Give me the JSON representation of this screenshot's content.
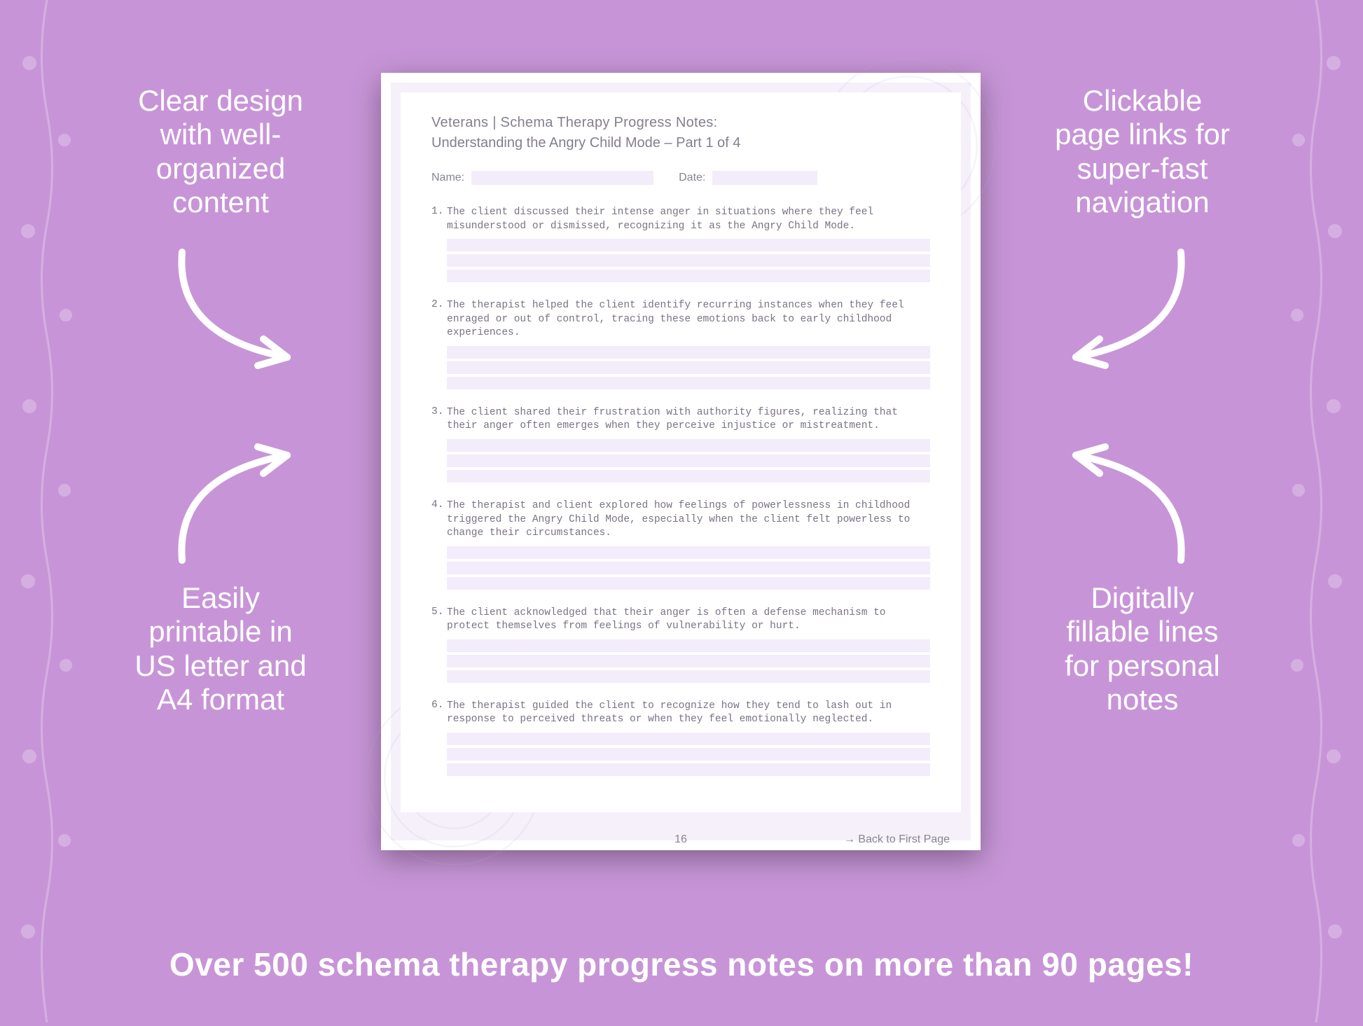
{
  "callouts": {
    "top_left": [
      "Clear design",
      "with well-",
      "organized",
      "content"
    ],
    "top_right": [
      "Clickable",
      "page links for",
      "super-fast",
      "navigation"
    ],
    "bottom_left": [
      "Easily",
      "printable in",
      "US letter and",
      "A4 format"
    ],
    "bottom_right": [
      "Digitally",
      "fillable lines",
      "for personal",
      "notes"
    ]
  },
  "callout_font_size": 42,
  "tagline": "Over 500 schema therapy progress notes on more than 90 pages!",
  "colors": {
    "background": "#c795d7",
    "page_bg": "#ffffff",
    "page_pad": "#f6f0fb",
    "fill_line": "#f3ecfa",
    "doc_text": "#857e8e",
    "body_text": "#7a7284",
    "white": "#ffffff"
  },
  "document": {
    "title": "Veterans | Schema Therapy Progress Notes:",
    "subtitle": "Understanding the Angry Child Mode  – Part 1 of 4",
    "name_label": "Name:",
    "date_label": "Date:",
    "page_number": "16",
    "back_link": "→ Back to First Page",
    "items": [
      "The client discussed their intense anger in situations where they feel misunderstood or dismissed, recognizing it as the Angry Child Mode.",
      "The therapist helped the client identify recurring instances when they feel enraged or out of control, tracing these emotions back to early childhood experiences.",
      "The client shared their frustration with authority figures, realizing that their anger often emerges when they perceive injustice or mistreatment.",
      "The therapist and client explored how feelings of powerlessness in childhood triggered the Angry Child Mode, especially when the client felt powerless to change their circumstances.",
      "The client acknowledged that their anger is often a defense mechanism to protect themselves from feelings of vulnerability or hurt.",
      "The therapist guided the client to recognize how they tend to lash out in response to perceived threats or when they feel emotionally neglected."
    ]
  }
}
